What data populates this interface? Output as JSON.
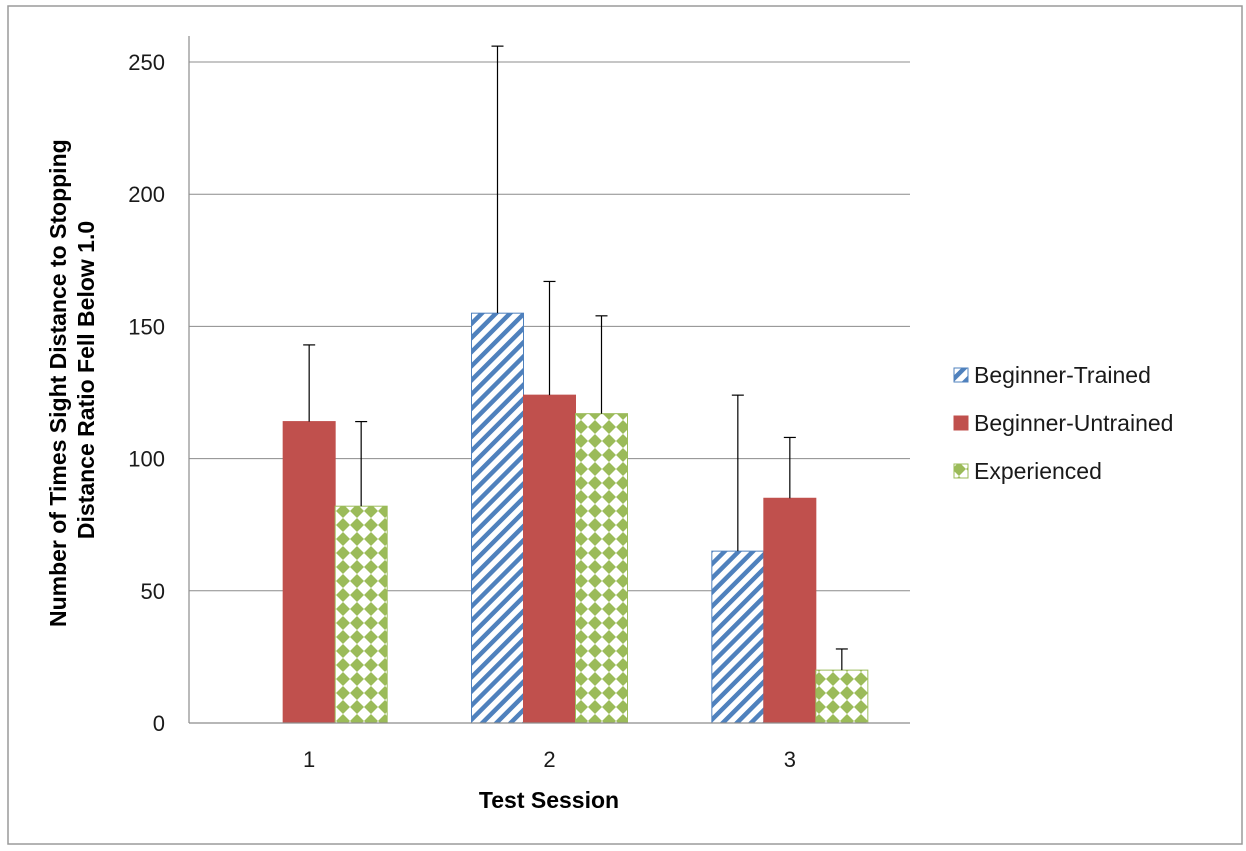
{
  "chart_data": {
    "type": "bar",
    "title": "",
    "xlabel": "Test Session",
    "ylabel_lines": [
      "Number  of Times Sight Distance to Stopping",
      "Distance Ratio Fell Below 1.0"
    ],
    "categories": [
      "1",
      "2",
      "3"
    ],
    "ylim": [
      0,
      250
    ],
    "yticks": [
      0,
      50,
      100,
      150,
      200,
      250
    ],
    "grid": true,
    "legend_position": "right",
    "series": [
      {
        "name": "Beginner-Trained",
        "values": [
          null,
          155,
          65
        ],
        "error_upper": [
          null,
          256,
          124
        ],
        "color": "#4f81bd",
        "pattern": "diagonal-stripes"
      },
      {
        "name": "Beginner-Untrained",
        "values": [
          114,
          124,
          85
        ],
        "error_upper": [
          143,
          167,
          108
        ],
        "color": "#c0504d",
        "pattern": "solid"
      },
      {
        "name": "Experienced",
        "values": [
          82,
          117,
          20
        ],
        "error_upper": [
          114,
          154,
          28
        ],
        "color": "#9bbb59",
        "pattern": "diamond-checker"
      }
    ]
  }
}
